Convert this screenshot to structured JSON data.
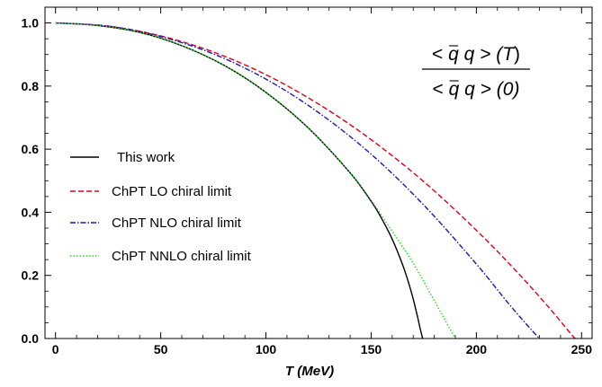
{
  "chart_data": {
    "type": "line",
    "title": "",
    "xlabel": "T (MeV)",
    "xlabel_parts": {
      "var": "T",
      "unit": "MeV"
    },
    "ylabel": "",
    "xlim": [
      -5,
      255
    ],
    "ylim": [
      0,
      1.05
    ],
    "xticks": [
      0,
      50,
      100,
      150,
      200,
      250
    ],
    "yticks": [
      0.0,
      0.2,
      0.4,
      0.6,
      0.8,
      1.0
    ],
    "xtick_labels": [
      "0",
      "50",
      "100",
      "150",
      "200",
      "250"
    ],
    "ytick_labels": [
      "0.0",
      "0.2",
      "0.4",
      "0.6",
      "0.8",
      "1.0"
    ],
    "grid": false,
    "legend_position": "left-middle",
    "annotation": {
      "numerator": [
        "< ",
        "q",
        " q > (",
        "T",
        ")"
      ],
      "denominator": [
        "< ",
        "q",
        " q > (0)"
      ],
      "overline_on": "q (first)"
    },
    "series": [
      {
        "name": "This work",
        "color": "#000000",
        "style": "solid",
        "x": [
          0,
          20,
          40,
          60,
          80,
          100,
          120,
          140,
          150,
          155,
          160,
          165,
          168,
          170,
          172,
          173,
          174,
          174.5
        ],
        "y": [
          1.0,
          0.992,
          0.97,
          0.928,
          0.866,
          0.78,
          0.668,
          0.525,
          0.435,
          0.38,
          0.315,
          0.233,
          0.172,
          0.125,
          0.07,
          0.04,
          0.012,
          0.0
        ]
      },
      {
        "name": "ChPT LO chiral limit",
        "color": "#e0001c",
        "style": "dashed",
        "x": [
          0,
          25,
          50,
          75,
          100,
          125,
          150,
          175,
          200,
          220,
          235,
          245,
          247
        ],
        "y": [
          1.0,
          0.99,
          0.959,
          0.908,
          0.836,
          0.743,
          0.63,
          0.497,
          0.343,
          0.206,
          0.094,
          0.014,
          0.0
        ]
      },
      {
        "name": "ChPT NLO chiral limit",
        "color": "#1a1aaa",
        "style": "dash-dot",
        "x": [
          0,
          25,
          50,
          75,
          100,
          125,
          150,
          175,
          200,
          215,
          225,
          230
        ],
        "y": [
          1.0,
          0.99,
          0.957,
          0.902,
          0.822,
          0.716,
          0.584,
          0.423,
          0.236,
          0.113,
          0.036,
          0.0
        ]
      },
      {
        "name": "ChPT NNLO chiral limit",
        "color": "#22dd22",
        "style": "dotted",
        "x": [
          0,
          20,
          40,
          60,
          80,
          100,
          120,
          140,
          150,
          160,
          170,
          180,
          185,
          190
        ],
        "y": [
          1.0,
          0.992,
          0.97,
          0.928,
          0.866,
          0.78,
          0.668,
          0.525,
          0.438,
          0.34,
          0.238,
          0.12,
          0.06,
          0.0
        ]
      }
    ]
  }
}
